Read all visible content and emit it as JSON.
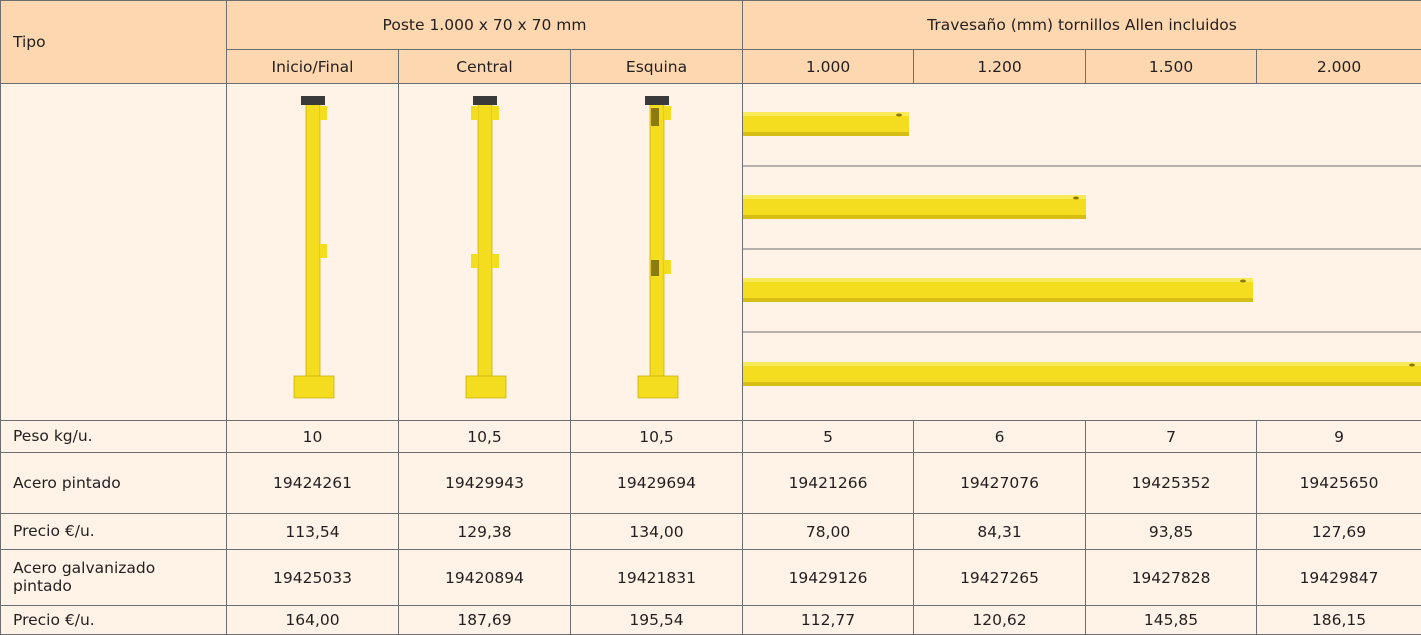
{
  "table": {
    "header": {
      "tipo": "Tipo",
      "groups": [
        "Poste 1.000 x 70 x 70 mm",
        "Travesaño (mm) tornillos Allen incluidos"
      ],
      "columns": [
        "Inicio/Final",
        "Central",
        "Esquina",
        "1.000",
        "1.200",
        "1.500",
        "2.000"
      ]
    },
    "rows": [
      {
        "label": "Peso kg/u.",
        "cells": [
          "10",
          "10,5",
          "10,5",
          "5",
          "6",
          "7",
          "9"
        ]
      },
      {
        "label": "Acero pintado",
        "cells": [
          "19424261",
          "19429943",
          "19429694",
          "19421266",
          "19427076",
          "19425352",
          "19425650"
        ]
      },
      {
        "label": "Precio €/u.",
        "cells": [
          "113,54",
          "129,38",
          "134,00",
          "78,00",
          "84,31",
          "93,85",
          "127,69"
        ]
      },
      {
        "label": "Acero galvanizado pintado",
        "cells": [
          "19425033",
          "19420894",
          "19421831",
          "19429126",
          "19427265",
          "19427828",
          "19429847"
        ]
      },
      {
        "label": "Precio €/u.",
        "cells": [
          "164,00",
          "187,69",
          "195,54",
          "112,77",
          "120,62",
          "145,85",
          "186,15"
        ]
      }
    ]
  }
}
